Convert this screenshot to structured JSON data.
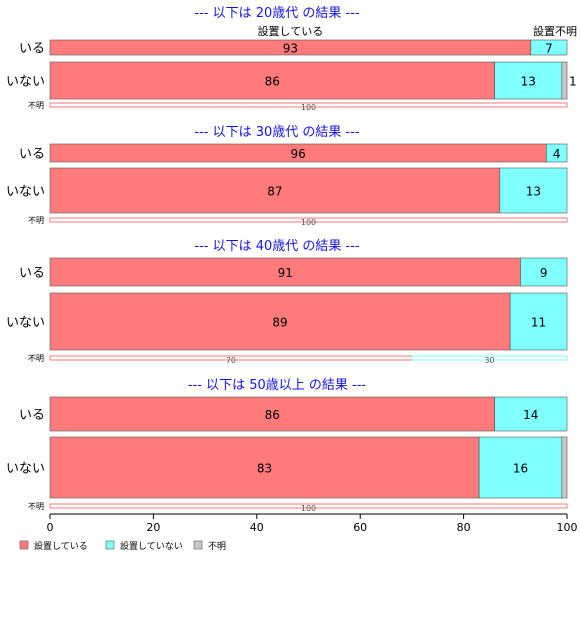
{
  "chart_data": {
    "type": "bar",
    "orientation": "horizontal",
    "stacked": "percent",
    "legend": {
      "position": "bottom-left",
      "entries": [
        {
          "name": "設置している",
          "color": "#ff7a7a"
        },
        {
          "name": "設置していない",
          "color": "#80ffff"
        },
        {
          "name": "不明",
          "color": "#c8c8c8"
        }
      ]
    },
    "xlim": [
      0,
      100
    ],
    "xticks": [
      "0",
      "20",
      "40",
      "60",
      "80",
      "100"
    ],
    "top_labels": [
      "設置している",
      "設置不明"
    ],
    "panels": [
      {
        "title": "--- 以下は 20歳代 の結果 ---",
        "rows": [
          {
            "label": "いる",
            "values": [
              93,
              7,
              0
            ],
            "value_labels": [
              "93",
              "7",
              ""
            ]
          },
          {
            "label": "いない",
            "values": [
              86,
              13,
              1
            ],
            "value_labels": [
              "86",
              "13",
              "1"
            ]
          },
          {
            "label": "不明",
            "values": [
              100,
              0,
              0
            ],
            "value_labels": [
              "100",
              "",
              ""
            ]
          }
        ]
      },
      {
        "title": "--- 以下は 30歳代 の結果 ---",
        "rows": [
          {
            "label": "いる",
            "values": [
              96,
              4,
              0
            ],
            "value_labels": [
              "96",
              "4",
              ""
            ]
          },
          {
            "label": "いない",
            "values": [
              87,
              13,
              0
            ],
            "value_labels": [
              "87",
              "13",
              ""
            ]
          },
          {
            "label": "不明",
            "values": [
              100,
              0,
              0
            ],
            "value_labels": [
              "100",
              "",
              ""
            ]
          }
        ]
      },
      {
        "title": "--- 以下は 40歳代 の結果 ---",
        "rows": [
          {
            "label": "いる",
            "values": [
              91,
              9,
              0
            ],
            "value_labels": [
              "91",
              "9",
              ""
            ]
          },
          {
            "label": "いない",
            "values": [
              89,
              11,
              0
            ],
            "value_labels": [
              "89",
              "11",
              ""
            ]
          },
          {
            "label": "不明",
            "values": [
              70,
              30,
              0
            ],
            "value_labels": [
              "70",
              "30",
              ""
            ]
          }
        ]
      },
      {
        "title": "--- 以下は 50歳以上 の結果 ---",
        "rows": [
          {
            "label": "いる",
            "values": [
              86,
              14,
              0
            ],
            "value_labels": [
              "86",
              "14",
              ""
            ]
          },
          {
            "label": "いない",
            "values": [
              83,
              16,
              1
            ],
            "value_labels": [
              "83",
              "16",
              ""
            ]
          },
          {
            "label": "不明",
            "values": [
              100,
              0,
              0
            ],
            "value_labels": [
              "100",
              "",
              ""
            ]
          }
        ]
      }
    ]
  }
}
